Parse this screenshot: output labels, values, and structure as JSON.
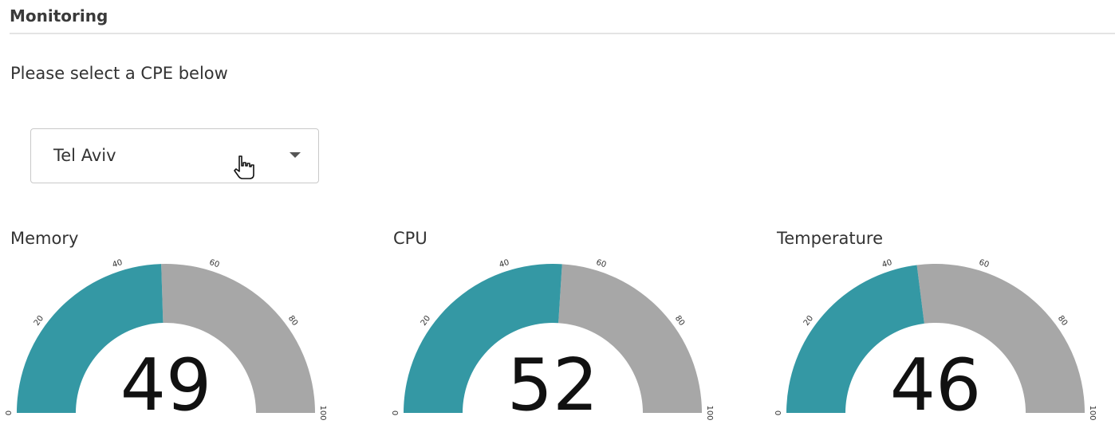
{
  "header": {
    "title": "Monitoring"
  },
  "prompt": "Please select a CPE below",
  "cpe_select": {
    "selected": "Tel Aviv"
  },
  "colors": {
    "fill": "#3498a4",
    "track": "#a7a7a7"
  },
  "chart_data": [
    {
      "type": "gauge",
      "title": "Memory",
      "value": 49,
      "min": 0,
      "max": 100,
      "ticks": [
        "0",
        "20",
        "40",
        "60",
        "80",
        "100"
      ]
    },
    {
      "type": "gauge",
      "title": "CPU",
      "value": 52,
      "min": 0,
      "max": 100,
      "ticks": [
        "0",
        "20",
        "40",
        "60",
        "80",
        "100"
      ]
    },
    {
      "type": "gauge",
      "title": "Temperature",
      "value": 46,
      "min": 0,
      "max": 100,
      "ticks": [
        "0",
        "20",
        "40",
        "60",
        "80",
        "100"
      ]
    }
  ]
}
